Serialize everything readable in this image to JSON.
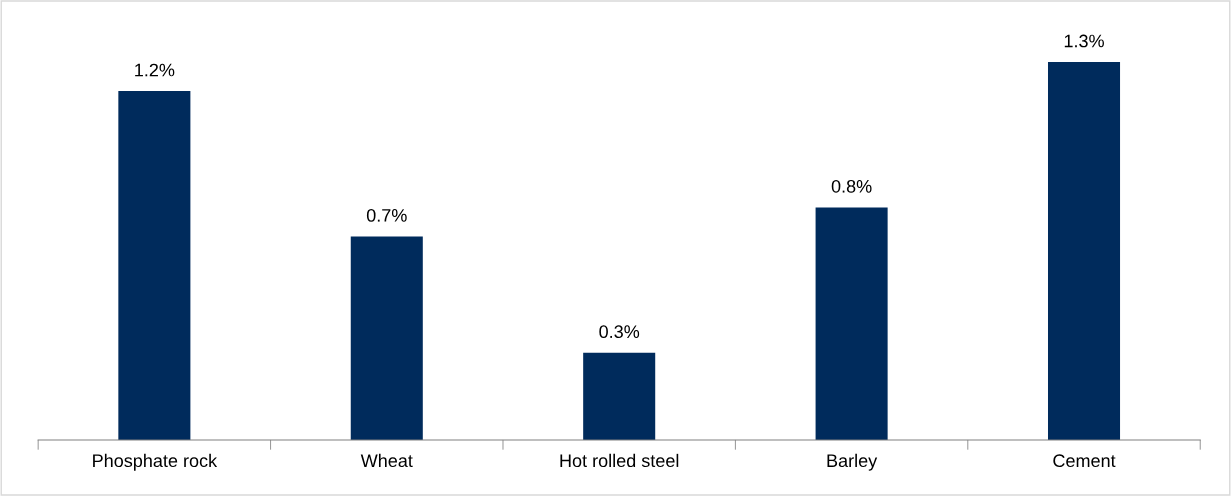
{
  "chart_data": {
    "type": "bar",
    "categories": [
      "Phosphate rock",
      "Wheat",
      "Hot rolled steel",
      "Barley",
      "Cement"
    ],
    "values": [
      1.2,
      0.7,
      0.3,
      0.8,
      1.3
    ],
    "value_labels": [
      "1.2%",
      "0.7%",
      "0.3%",
      "0.8%",
      "1.3%"
    ],
    "color": "#002b5c",
    "grid": false,
    "legend": false,
    "tick_labels": "x"
  }
}
